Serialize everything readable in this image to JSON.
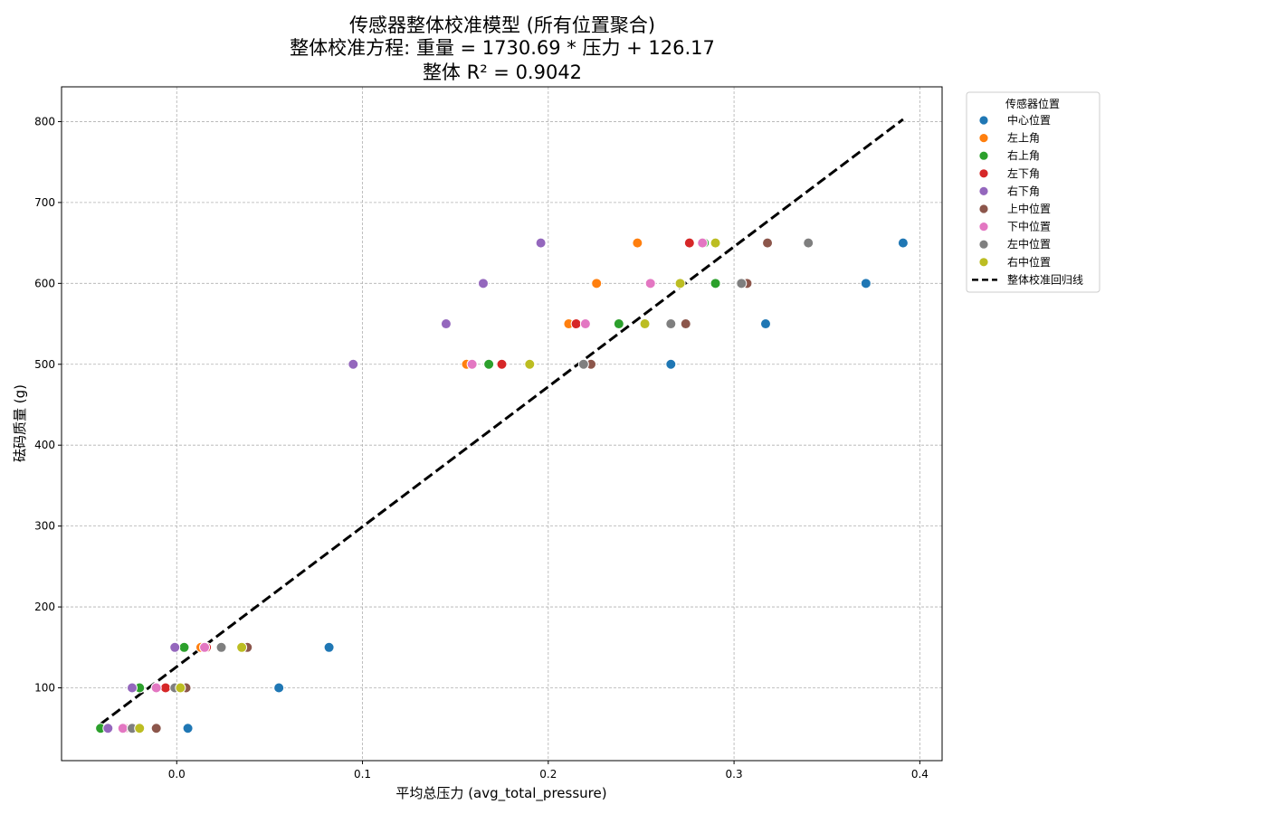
{
  "chart_data": {
    "type": "scatter",
    "title_lines": [
      "传感器整体校准模型 (所有位置聚合)",
      "整体校准方程: 重量 = 1730.69 * 压力 + 126.17",
      "整体 R² = 0.9042"
    ],
    "xlabel": "平均总压力 (avg_total_pressure)",
    "ylabel": "砝码质量 (g)",
    "xlim": [
      -0.062,
      0.412
    ],
    "ylim": [
      10,
      843
    ],
    "xticks": [
      0.0,
      0.1,
      0.2,
      0.3,
      0.4
    ],
    "xtick_labels": [
      "0.0",
      "0.1",
      "0.2",
      "0.3",
      "0.4"
    ],
    "yticks": [
      100,
      200,
      300,
      400,
      500,
      600,
      700,
      800
    ],
    "ytick_labels": [
      "100",
      "200",
      "300",
      "400",
      "500",
      "600",
      "700",
      "800"
    ],
    "grid": true,
    "legend_title": "传感器位置",
    "legend_position": "outside-right",
    "series": [
      {
        "name": "中心位置",
        "color": "#1f77b4",
        "points": [
          [
            0.006,
            50
          ],
          [
            0.055,
            100
          ],
          [
            0.082,
            150
          ],
          [
            0.266,
            500
          ],
          [
            0.317,
            550
          ],
          [
            0.371,
            600
          ],
          [
            0.391,
            650
          ]
        ]
      },
      {
        "name": "左上角",
        "color": "#ff7f0e",
        "points": [
          [
            -0.023,
            50
          ],
          [
            -0.011,
            100
          ],
          [
            0.013,
            150
          ],
          [
            0.156,
            500
          ],
          [
            0.211,
            550
          ],
          [
            0.226,
            600
          ],
          [
            0.248,
            650
          ]
        ]
      },
      {
        "name": "右上角",
        "color": "#2ca02c",
        "points": [
          [
            -0.041,
            50
          ],
          [
            -0.02,
            100
          ],
          [
            0.004,
            150
          ],
          [
            0.168,
            500
          ],
          [
            0.238,
            550
          ],
          [
            0.29,
            600
          ],
          [
            0.284,
            650
          ]
        ]
      },
      {
        "name": "左下角",
        "color": "#d62728",
        "points": [
          [
            -0.028,
            50
          ],
          [
            -0.006,
            100
          ],
          [
            0.016,
            150
          ],
          [
            0.175,
            500
          ],
          [
            0.215,
            550
          ],
          [
            0.271,
            600
          ],
          [
            0.276,
            650
          ]
        ]
      },
      {
        "name": "右下角",
        "color": "#9467bd",
        "points": [
          [
            -0.037,
            50
          ],
          [
            -0.024,
            100
          ],
          [
            -0.001,
            150
          ],
          [
            0.095,
            500
          ],
          [
            0.145,
            550
          ],
          [
            0.165,
            600
          ],
          [
            0.196,
            650
          ]
        ]
      },
      {
        "name": "上中位置",
        "color": "#8c564b",
        "points": [
          [
            -0.011,
            50
          ],
          [
            0.005,
            100
          ],
          [
            0.038,
            150
          ],
          [
            0.223,
            500
          ],
          [
            0.274,
            550
          ],
          [
            0.307,
            600
          ],
          [
            0.318,
            650
          ]
        ]
      },
      {
        "name": "下中位置",
        "color": "#e377c2",
        "points": [
          [
            -0.029,
            50
          ],
          [
            -0.011,
            100
          ],
          [
            0.015,
            150
          ],
          [
            0.159,
            500
          ],
          [
            0.22,
            550
          ],
          [
            0.255,
            600
          ],
          [
            0.283,
            650
          ]
        ]
      },
      {
        "name": "左中位置",
        "color": "#7f7f7f",
        "points": [
          [
            -0.024,
            50
          ],
          [
            -0.001,
            100
          ],
          [
            0.024,
            150
          ],
          [
            0.219,
            500
          ],
          [
            0.266,
            550
          ],
          [
            0.304,
            600
          ],
          [
            0.34,
            650
          ]
        ]
      },
      {
        "name": "右中位置",
        "color": "#bcbd22",
        "points": [
          [
            -0.02,
            50
          ],
          [
            0.002,
            100
          ],
          [
            0.035,
            150
          ],
          [
            0.19,
            500
          ],
          [
            0.252,
            550
          ],
          [
            0.271,
            600
          ],
          [
            0.29,
            650
          ]
        ]
      }
    ],
    "regression": {
      "name": "整体校准回归线",
      "color": "#000000",
      "style": "dashed",
      "slope": 1730.69,
      "intercept": 126.17,
      "x_range": [
        -0.041,
        0.391
      ]
    }
  }
}
